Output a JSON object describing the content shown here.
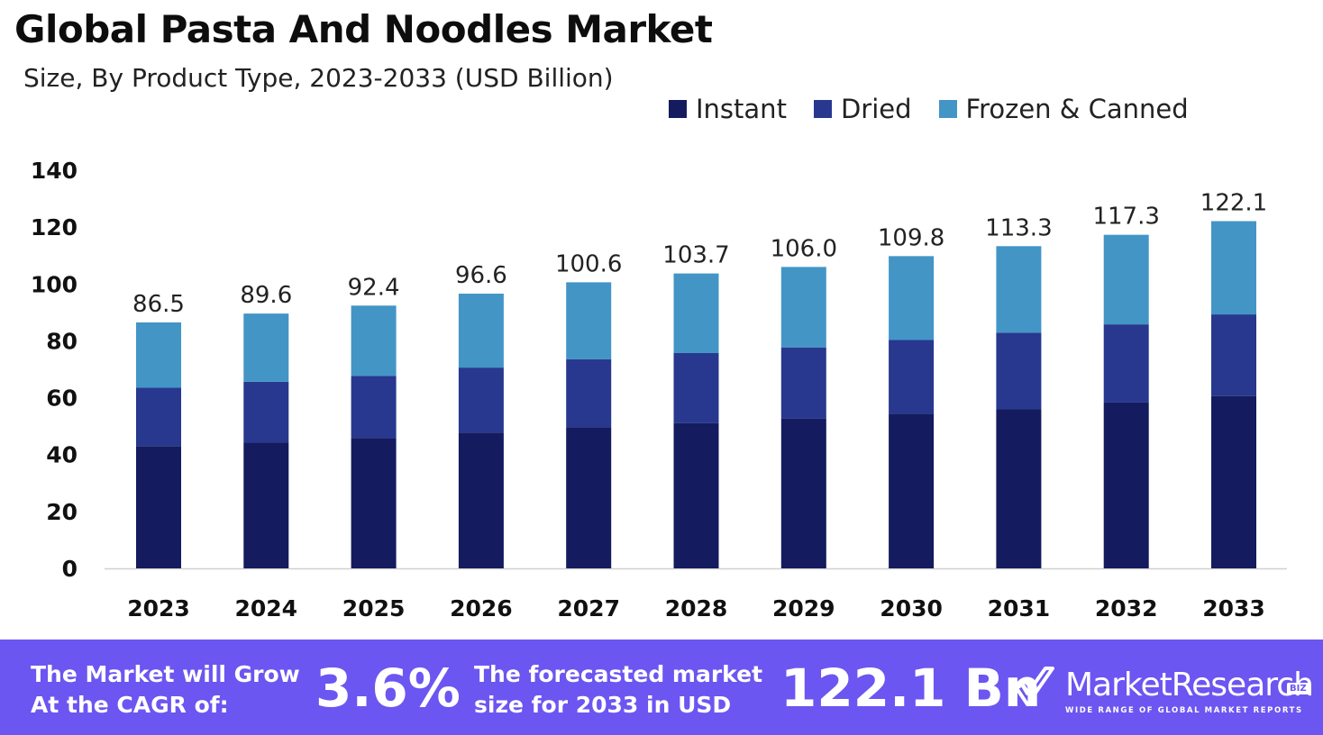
{
  "title": "Global Pasta And Noodles Market",
  "subtitle": "Size, By Product Type, 2023-2033 (USD Billion)",
  "colors": {
    "instant": "#141b5e",
    "dried": "#27388e",
    "frozen": "#4395c6",
    "footer": "#6b56f1"
  },
  "chart_data": {
    "type": "bar",
    "stacked": true,
    "title": "Global Pasta And Noodles Market",
    "subtitle": "Size, By Product Type, 2023-2033 (USD Billion)",
    "categories": [
      "2023",
      "2024",
      "2025",
      "2026",
      "2027",
      "2028",
      "2029",
      "2030",
      "2031",
      "2032",
      "2033"
    ],
    "series": [
      {
        "name": "Instant",
        "values": [
          43.0,
          44.2,
          45.8,
          47.7,
          49.6,
          51.1,
          52.6,
          54.3,
          55.9,
          58.3,
          60.6
        ]
      },
      {
        "name": "Dried",
        "values": [
          20.5,
          21.4,
          21.9,
          22.9,
          23.9,
          24.6,
          25.1,
          26.0,
          27.0,
          27.5,
          28.7
        ]
      },
      {
        "name": "Frozen & Canned",
        "values": [
          23.0,
          24.0,
          24.7,
          26.0,
          27.1,
          28.0,
          28.3,
          29.5,
          30.4,
          31.5,
          32.8
        ]
      }
    ],
    "totals": [
      "86.5",
      "89.6",
      "92.4",
      "96.6",
      "100.6",
      "103.7",
      "106.0",
      "109.8",
      "113.3",
      "117.3",
      "122.1"
    ],
    "yticks": [
      "0",
      "20",
      "40",
      "60",
      "80",
      "100",
      "120",
      "140"
    ],
    "ylim": [
      0,
      140
    ],
    "xlabel": "",
    "ylabel": "",
    "legend": "top-right"
  },
  "footer": {
    "cagr_text_line1": "The Market will Grow",
    "cagr_text_line2": "At the CAGR of:",
    "cagr_value": "3.6%",
    "forecast_text_line1": "The forecasted market",
    "forecast_text_line2": "size for 2033 in USD",
    "forecast_value": "122.1 Bn",
    "brand_name": "MarketResearch",
    "brand_biz": "BIZ",
    "brand_tagline": "WIDE RANGE OF GLOBAL MARKET REPORTS"
  }
}
